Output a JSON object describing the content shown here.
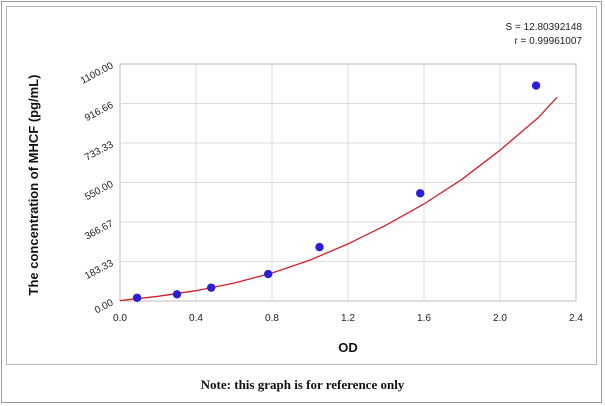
{
  "chart_data": {
    "type": "scatter",
    "xlabel": "OD",
    "ylabel": "The concentration of  MHCF (pg/mL)",
    "xlim": [
      0.0,
      2.4
    ],
    "ylim": [
      0.0,
      1100.0
    ],
    "x_ticks": [
      "0.0",
      "0.4",
      "0.8",
      "1.2",
      "1.6",
      "2.0",
      "2.4"
    ],
    "y_ticks": [
      "0.00",
      "183.33",
      "366.67",
      "550.00",
      "733.33",
      "916.66",
      "1100.00"
    ],
    "grid": true,
    "series": [
      {
        "type": "scatter",
        "color": "#2a1fd6",
        "x": [
          0.09,
          0.3,
          0.48,
          0.78,
          1.05,
          1.58,
          2.19
        ],
        "y": [
          15,
          31,
          62,
          125,
          250,
          500,
          1000
        ]
      },
      {
        "type": "line",
        "color": "#d11f2a",
        "x": [
          0.0,
          0.2,
          0.4,
          0.6,
          0.8,
          1.0,
          1.2,
          1.4,
          1.6,
          1.8,
          2.0,
          2.2,
          2.3
        ],
        "y": [
          2,
          22,
          48,
          83,
          130,
          190,
          265,
          352,
          450,
          565,
          700,
          850,
          945
        ]
      }
    ],
    "stats": {
      "s_line": "S = 12.80392148",
      "r_line": "r = 0.99961007"
    }
  },
  "note": "Note: this graph is for reference only"
}
